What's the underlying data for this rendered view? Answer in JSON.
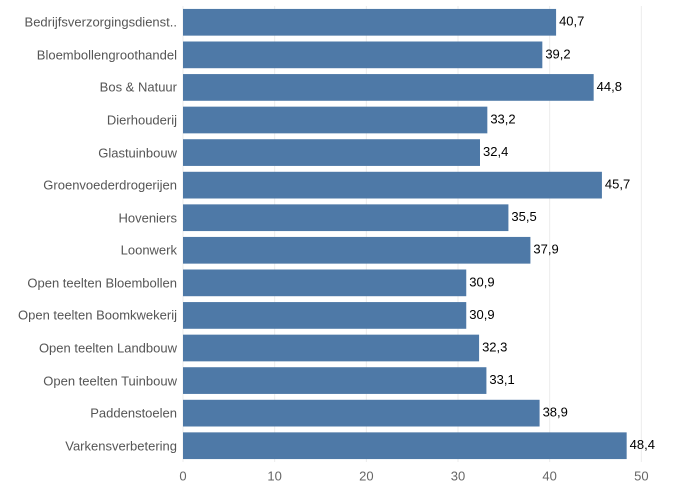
{
  "chart_data": {
    "type": "bar",
    "orientation": "horizontal",
    "categories": [
      "Bedrijfsverzorgingsdienst..",
      "Bloembollengroothandel",
      "Bos & Natuur",
      "Dierhouderij",
      "Glastuinbouw",
      "Groenvoederdrogerijen",
      "Hoveniers",
      "Loonwerk",
      "Open teelten Bloembollen",
      "Open teelten Boomkwekerij",
      "Open teelten Landbouw",
      "Open teelten Tuinbouw",
      "Paddenstoelen",
      "Varkensverbetering"
    ],
    "values": [
      40.7,
      39.2,
      44.8,
      33.2,
      32.4,
      45.7,
      35.5,
      37.9,
      30.9,
      30.9,
      32.3,
      33.1,
      38.9,
      48.4
    ],
    "value_labels": [
      "40,7",
      "39,2",
      "44,8",
      "33,2",
      "32,4",
      "45,7",
      "35,5",
      "37,9",
      "30,9",
      "30,9",
      "32,3",
      "33,1",
      "38,9",
      "48,4"
    ],
    "color": "#4e79a7",
    "xlim": [
      0,
      54
    ],
    "xticks": [
      0,
      10,
      20,
      30,
      40,
      50
    ],
    "grid": true
  }
}
